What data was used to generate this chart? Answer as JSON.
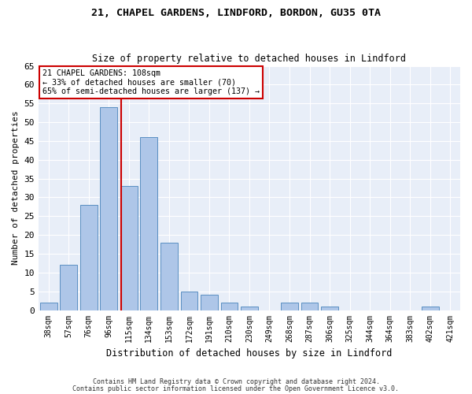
{
  "title1": "21, CHAPEL GARDENS, LINDFORD, BORDON, GU35 0TA",
  "title2": "Size of property relative to detached houses in Lindford",
  "xlabel": "Distribution of detached houses by size in Lindford",
  "ylabel": "Number of detached properties",
  "categories": [
    "38sqm",
    "57sqm",
    "76sqm",
    "96sqm",
    "115sqm",
    "134sqm",
    "153sqm",
    "172sqm",
    "191sqm",
    "210sqm",
    "230sqm",
    "249sqm",
    "268sqm",
    "287sqm",
    "306sqm",
    "325sqm",
    "344sqm",
    "364sqm",
    "383sqm",
    "402sqm",
    "421sqm"
  ],
  "values": [
    2,
    12,
    28,
    54,
    33,
    46,
    18,
    5,
    4,
    2,
    1,
    0,
    2,
    2,
    1,
    0,
    0,
    0,
    0,
    1,
    0
  ],
  "bar_color": "#aec6e8",
  "bar_edge_color": "#5a8fc2",
  "annotation_title": "21 CHAPEL GARDENS: 108sqm",
  "annotation_line1": "← 33% of detached houses are smaller (70)",
  "annotation_line2": "65% of semi-detached houses are larger (137) →",
  "vline_x": 3.63,
  "vline_color": "#cc0000",
  "annotation_box_color": "#ffffff",
  "annotation_box_edge": "#cc0000",
  "ylim": [
    0,
    65
  ],
  "yticks": [
    0,
    5,
    10,
    15,
    20,
    25,
    30,
    35,
    40,
    45,
    50,
    55,
    60,
    65
  ],
  "footnote1": "Contains HM Land Registry data © Crown copyright and database right 2024.",
  "footnote2": "Contains public sector information licensed under the Open Government Licence v3.0.",
  "bg_color": "#e8eef8",
  "fig_bg_color": "#ffffff",
  "grid_color": "#ffffff"
}
